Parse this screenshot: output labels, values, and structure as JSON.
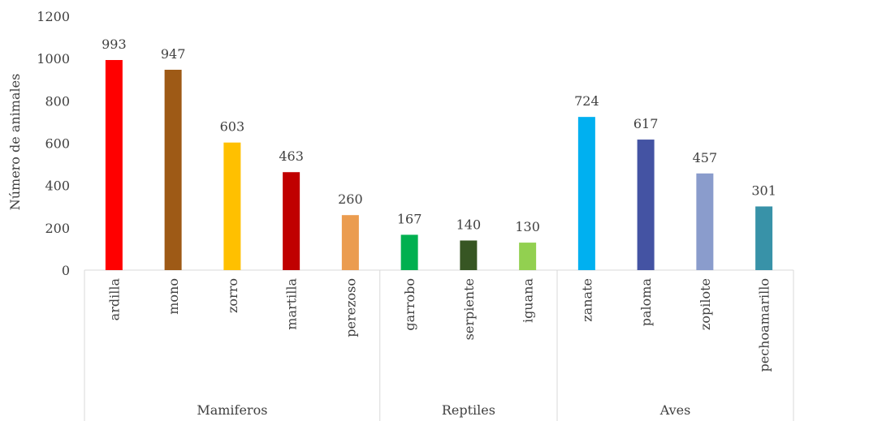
{
  "chart_data": {
    "type": "bar",
    "title": "",
    "xlabel": "",
    "ylabel": "Número de animales",
    "ylim": [
      0,
      1200
    ],
    "yticks": [
      0,
      200,
      400,
      600,
      800,
      1000,
      1200
    ],
    "grid": false,
    "legend": "none",
    "categories": [
      "ardilla",
      "mono",
      "zorro",
      "martilla",
      "perezoso",
      "garrobo",
      "serpiente",
      "iguana",
      "zanate",
      "paloma",
      "zopilote",
      "pechoamarillo"
    ],
    "values": [
      993,
      947,
      603,
      463,
      260,
      167,
      140,
      130,
      724,
      617,
      457,
      301
    ],
    "colors": [
      "#ff0000",
      "#9e5a16",
      "#ffc000",
      "#c00000",
      "#eb9c4f",
      "#00b050",
      "#375623",
      "#92d050",
      "#00b0f0",
      "#4453a3",
      "#8a9ccc",
      "#3892a8"
    ],
    "groups": [
      {
        "label": "Mamiferos",
        "start": 0,
        "count": 5
      },
      {
        "label": "Reptiles",
        "start": 5,
        "count": 3
      },
      {
        "label": "Aves",
        "start": 8,
        "count": 4
      }
    ]
  }
}
